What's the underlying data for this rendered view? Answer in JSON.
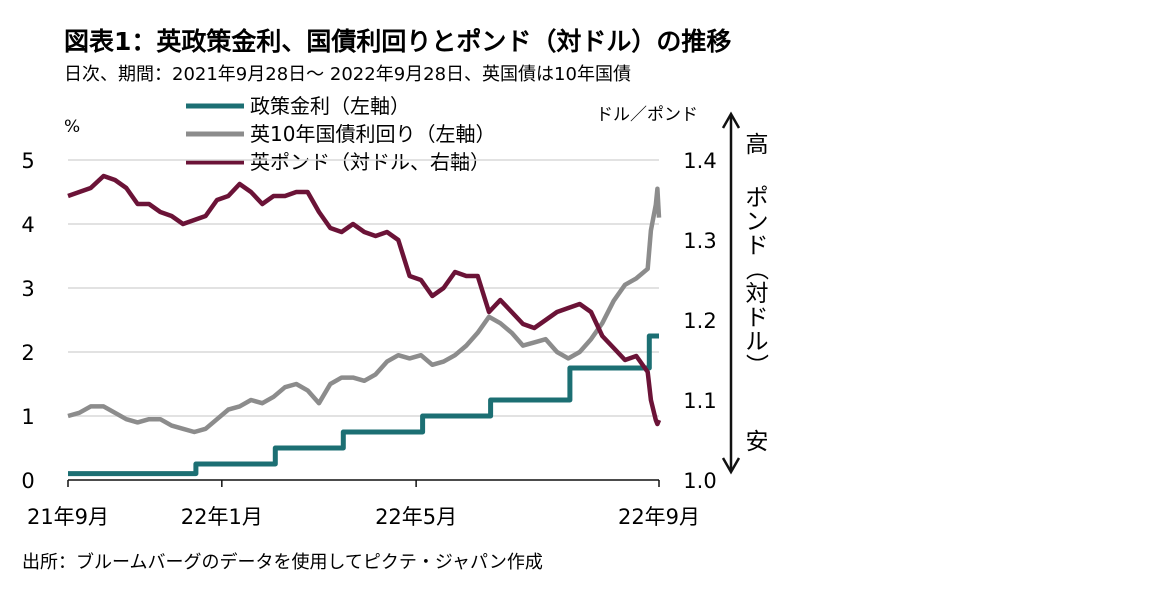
{
  "chart_data": {
    "type": "line",
    "title": "図表1：英政策金利、国債利回りとポンド（対ドル）の推移",
    "subtitle": "日次、期間：2021年9月28日～ 2022年9月28日、英国債は10年国債",
    "source": "出所：ブルームバーグのデータを使用してピクテ・ジャパン作成",
    "left_unit": "%",
    "right_unit": "ドル／ポンド",
    "right_axis_caption": {
      "high": "高",
      "middle_chars": [
        "ポ",
        "ン",
        "ド",
        "（",
        "対",
        "ド",
        "ル",
        "）"
      ],
      "low": "安"
    },
    "y_left": {
      "min": 0,
      "max": 5,
      "ticks": [
        "0",
        "1",
        "2",
        "3",
        "4",
        "5"
      ]
    },
    "y_right": {
      "min": 1.0,
      "max": 1.4,
      "ticks": [
        "1.0",
        "1.1",
        "1.2",
        "1.3",
        "1.4"
      ]
    },
    "x_axis": {
      "range": [
        "2021-09-28",
        "2022-09-28"
      ],
      "ticks": [
        {
          "date": "2021-09-28",
          "label": "21年9月"
        },
        {
          "date": "2022-01-01",
          "label": "22年1月"
        },
        {
          "date": "2022-05-01",
          "label": "22年5月"
        },
        {
          "date": "2022-09-28",
          "label": "22年9月"
        }
      ]
    },
    "grid": "horizontal",
    "legend_position": "top-center",
    "series": [
      {
        "name": "政策金利（左軸）",
        "axis": "left",
        "color": "#1c6f73",
        "step": true,
        "points": [
          [
            "2021-09-28",
            0.1
          ],
          [
            "2021-12-16",
            0.25
          ],
          [
            "2022-02-03",
            0.5
          ],
          [
            "2022-03-17",
            0.75
          ],
          [
            "2022-05-05",
            1.0
          ],
          [
            "2022-06-16",
            1.25
          ],
          [
            "2022-08-04",
            1.75
          ],
          [
            "2022-09-22",
            2.25
          ],
          [
            "2022-09-28",
            2.25
          ]
        ]
      },
      {
        "name": "英10年国債利回り（左軸）",
        "axis": "left",
        "color": "#8c8c8c",
        "points": [
          [
            "2021-09-28",
            1.0
          ],
          [
            "2021-10-05",
            1.05
          ],
          [
            "2021-10-12",
            1.15
          ],
          [
            "2021-10-20",
            1.15
          ],
          [
            "2021-10-27",
            1.05
          ],
          [
            "2021-11-03",
            0.95
          ],
          [
            "2021-11-10",
            0.9
          ],
          [
            "2021-11-17",
            0.95
          ],
          [
            "2021-11-24",
            0.95
          ],
          [
            "2021-12-01",
            0.85
          ],
          [
            "2021-12-08",
            0.8
          ],
          [
            "2021-12-15",
            0.75
          ],
          [
            "2021-12-22",
            0.8
          ],
          [
            "2021-12-29",
            0.95
          ],
          [
            "2022-01-05",
            1.1
          ],
          [
            "2022-01-12",
            1.15
          ],
          [
            "2022-01-19",
            1.25
          ],
          [
            "2022-01-26",
            1.2
          ],
          [
            "2022-02-02",
            1.3
          ],
          [
            "2022-02-09",
            1.45
          ],
          [
            "2022-02-16",
            1.5
          ],
          [
            "2022-02-23",
            1.4
          ],
          [
            "2022-03-02",
            1.2
          ],
          [
            "2022-03-09",
            1.5
          ],
          [
            "2022-03-16",
            1.6
          ],
          [
            "2022-03-23",
            1.6
          ],
          [
            "2022-03-30",
            1.55
          ],
          [
            "2022-04-06",
            1.65
          ],
          [
            "2022-04-13",
            1.85
          ],
          [
            "2022-04-20",
            1.95
          ],
          [
            "2022-04-27",
            1.9
          ],
          [
            "2022-05-04",
            1.95
          ],
          [
            "2022-05-11",
            1.8
          ],
          [
            "2022-05-18",
            1.85
          ],
          [
            "2022-05-25",
            1.95
          ],
          [
            "2022-06-01",
            2.1
          ],
          [
            "2022-06-08",
            2.3
          ],
          [
            "2022-06-15",
            2.55
          ],
          [
            "2022-06-22",
            2.45
          ],
          [
            "2022-06-29",
            2.3
          ],
          [
            "2022-07-06",
            2.1
          ],
          [
            "2022-07-13",
            2.15
          ],
          [
            "2022-07-20",
            2.2
          ],
          [
            "2022-07-27",
            2.0
          ],
          [
            "2022-08-03",
            1.9
          ],
          [
            "2022-08-10",
            2.0
          ],
          [
            "2022-08-17",
            2.2
          ],
          [
            "2022-08-24",
            2.45
          ],
          [
            "2022-08-31",
            2.8
          ],
          [
            "2022-09-07",
            3.05
          ],
          [
            "2022-09-14",
            3.15
          ],
          [
            "2022-09-21",
            3.3
          ],
          [
            "2022-09-23",
            3.9
          ],
          [
            "2022-09-26",
            4.3
          ],
          [
            "2022-09-27",
            4.55
          ],
          [
            "2022-09-28",
            4.1
          ]
        ]
      },
      {
        "name": "英ポンド（対ドル、右軸）",
        "axis": "right",
        "color": "#6b1337",
        "points": [
          [
            "2021-09-28",
            1.355
          ],
          [
            "2021-10-05",
            1.36
          ],
          [
            "2021-10-12",
            1.365
          ],
          [
            "2021-10-20",
            1.38
          ],
          [
            "2021-10-27",
            1.375
          ],
          [
            "2021-11-03",
            1.365
          ],
          [
            "2021-11-10",
            1.345
          ],
          [
            "2021-11-17",
            1.345
          ],
          [
            "2021-11-24",
            1.335
          ],
          [
            "2021-12-01",
            1.33
          ],
          [
            "2021-12-08",
            1.32
          ],
          [
            "2021-12-15",
            1.325
          ],
          [
            "2021-12-22",
            1.33
          ],
          [
            "2021-12-29",
            1.35
          ],
          [
            "2022-01-05",
            1.355
          ],
          [
            "2022-01-12",
            1.37
          ],
          [
            "2022-01-19",
            1.36
          ],
          [
            "2022-01-26",
            1.345
          ],
          [
            "2022-02-02",
            1.355
          ],
          [
            "2022-02-09",
            1.355
          ],
          [
            "2022-02-16",
            1.36
          ],
          [
            "2022-02-23",
            1.36
          ],
          [
            "2022-03-02",
            1.335
          ],
          [
            "2022-03-09",
            1.315
          ],
          [
            "2022-03-16",
            1.31
          ],
          [
            "2022-03-23",
            1.32
          ],
          [
            "2022-03-30",
            1.31
          ],
          [
            "2022-04-06",
            1.305
          ],
          [
            "2022-04-13",
            1.31
          ],
          [
            "2022-04-20",
            1.3
          ],
          [
            "2022-04-27",
            1.255
          ],
          [
            "2022-05-04",
            1.25
          ],
          [
            "2022-05-11",
            1.23
          ],
          [
            "2022-05-18",
            1.24
          ],
          [
            "2022-05-25",
            1.26
          ],
          [
            "2022-06-01",
            1.255
          ],
          [
            "2022-06-08",
            1.255
          ],
          [
            "2022-06-15",
            1.21
          ],
          [
            "2022-06-22",
            1.225
          ],
          [
            "2022-06-29",
            1.21
          ],
          [
            "2022-07-06",
            1.195
          ],
          [
            "2022-07-13",
            1.19
          ],
          [
            "2022-07-20",
            1.2
          ],
          [
            "2022-07-27",
            1.21
          ],
          [
            "2022-08-03",
            1.215
          ],
          [
            "2022-08-10",
            1.22
          ],
          [
            "2022-08-17",
            1.21
          ],
          [
            "2022-08-24",
            1.18
          ],
          [
            "2022-08-31",
            1.165
          ],
          [
            "2022-09-07",
            1.15
          ],
          [
            "2022-09-14",
            1.155
          ],
          [
            "2022-09-21",
            1.135
          ],
          [
            "2022-09-23",
            1.1
          ],
          [
            "2022-09-26",
            1.075
          ],
          [
            "2022-09-27",
            1.07
          ],
          [
            "2022-09-28",
            1.075
          ]
        ]
      }
    ]
  }
}
